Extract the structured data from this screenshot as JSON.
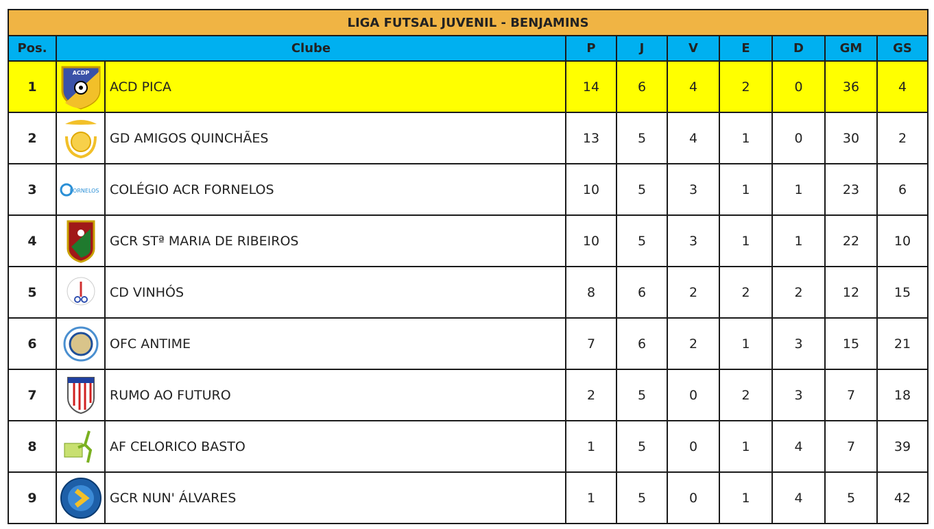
{
  "title": "LIGA FUTSAL JUVENIL  - BENJAMINS",
  "headers": {
    "pos": "Pos.",
    "club": "Clube",
    "p": "P",
    "j": "J",
    "v": "V",
    "e": "E",
    "d": "D",
    "gm": "GM",
    "gs": "GS"
  },
  "highlight_color": "#ffff00",
  "rows": [
    {
      "pos": "1",
      "club": "ACD PICA",
      "logo": "acd-pica-crest",
      "p": "14",
      "j": "6",
      "v": "4",
      "e": "2",
      "d": "0",
      "gm": "36",
      "gs": "4",
      "logo_text": "ACDP"
    },
    {
      "pos": "2",
      "club": "GD AMIGOS QUINCHÃES",
      "logo": "gd-amigos-quinchaes-crest",
      "p": "13",
      "j": "5",
      "v": "4",
      "e": "1",
      "d": "0",
      "gm": "30",
      "gs": "2"
    },
    {
      "pos": "3",
      "club": "COLÉGIO  ACR FORNELOS",
      "logo": "acr-fornelos-logo",
      "p": "10",
      "j": "5",
      "v": "3",
      "e": "1",
      "d": "1",
      "gm": "23",
      "gs": "6"
    },
    {
      "pos": "4",
      "club": "GCR STª MARIA DE  RIBEIROS",
      "logo": "gcr-ribeiros-crest",
      "p": "10",
      "j": "5",
      "v": "3",
      "e": "1",
      "d": "1",
      "gm": "22",
      "gs": "10"
    },
    {
      "pos": "5",
      "club": "CD VINHÓS",
      "logo": "cd-vinhos-crest",
      "p": "8",
      "j": "6",
      "v": "2",
      "e": "2",
      "d": "2",
      "gm": "12",
      "gs": "15"
    },
    {
      "pos": "6",
      "club": "OFC ANTIME",
      "logo": "ofc-antime-crest",
      "p": "7",
      "j": "6",
      "v": "2",
      "e": "1",
      "d": "3",
      "gm": "15",
      "gs": "21"
    },
    {
      "pos": "7",
      "club": "RUMO AO FUTURO",
      "logo": "rumo-ao-futuro-crest",
      "p": "2",
      "j": "5",
      "v": "0",
      "e": "2",
      "d": "3",
      "gm": "7",
      "gs": "18"
    },
    {
      "pos": "8",
      "club": "AF CELORICO BASTO",
      "logo": "af-celorico-basto-logo",
      "p": "1",
      "j": "5",
      "v": "0",
      "e": "1",
      "d": "4",
      "gm": "7",
      "gs": "39"
    },
    {
      "pos": "9",
      "club": "GCR NUN' ÁLVARES",
      "logo": "gcr-nun-alvares-crest",
      "p": "1",
      "j": "5",
      "v": "0",
      "e": "1",
      "d": "4",
      "gm": "5",
      "gs": "42"
    }
  ]
}
